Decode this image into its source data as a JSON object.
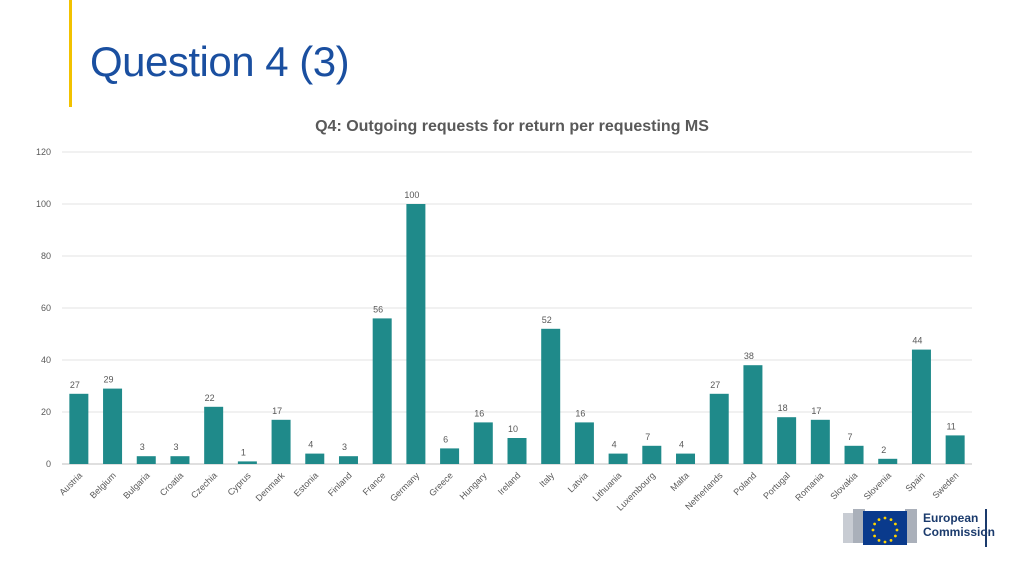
{
  "slide": {
    "title": "Question 4 (3)",
    "accent_color": "#f2c200",
    "title_color": "#1a4fa0"
  },
  "logo": {
    "line1": "European",
    "line2": "Commission",
    "icon": "eu-flag-icon"
  },
  "chart_data": {
    "type": "bar",
    "title": "Q4: Outgoing requests for return per requesting MS",
    "xlabel": "",
    "ylabel": "",
    "ylim": [
      0,
      120
    ],
    "yticks": [
      0,
      20,
      40,
      60,
      80,
      100,
      120
    ],
    "grid": true,
    "bar_color": "#1f8a8a",
    "categories": [
      "Austria",
      "Belgium",
      "Bulgaria",
      "Croatia",
      "Czechia",
      "Cyprus",
      "Denmark",
      "Estonia",
      "Finland",
      "France",
      "Germany",
      "Greece",
      "Hungary",
      "Ireland",
      "Italy",
      "Latvia",
      "Lithuania",
      "Luxembourg",
      "Malta",
      "Netherlands",
      "Poland",
      "Portugal",
      "Romania",
      "Slovakia",
      "Slovenia",
      "Spain",
      "Sweden"
    ],
    "values": [
      27,
      29,
      3,
      3,
      22,
      1,
      17,
      4,
      3,
      56,
      100,
      6,
      16,
      10,
      52,
      16,
      4,
      7,
      4,
      27,
      38,
      18,
      17,
      7,
      2,
      44,
      11
    ]
  }
}
